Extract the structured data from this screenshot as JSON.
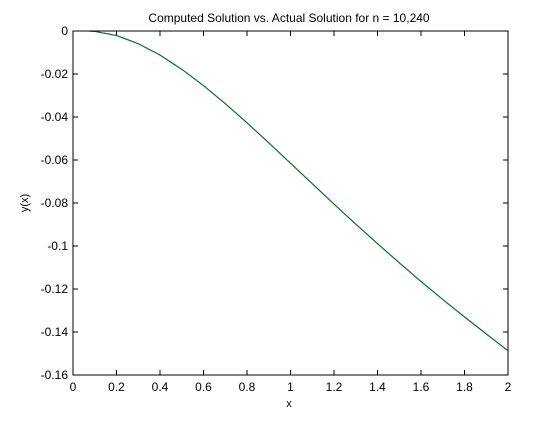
{
  "chart_data": {
    "type": "line",
    "title": "Computed Solution vs. Actual Solution for n = 10,240",
    "xlabel": "x",
    "ylabel": "y(x)",
    "xlim": [
      0,
      2
    ],
    "ylim": [
      -0.16,
      0
    ],
    "x_ticks": [
      0,
      0.2,
      0.4,
      0.6,
      0.8,
      1,
      1.2,
      1.4,
      1.6,
      1.8,
      2
    ],
    "x_tick_labels": [
      "0",
      "0.2",
      "0.4",
      "0.6",
      "0.8",
      "1",
      "1.2",
      "1.4",
      "1.6",
      "1.8",
      "2"
    ],
    "y_ticks": [
      0,
      -0.02,
      -0.04,
      -0.06,
      -0.08,
      -0.1,
      -0.12,
      -0.14,
      -0.16
    ],
    "y_tick_labels": [
      "0",
      "-0.02",
      "-0.04",
      "-0.06",
      "-0.08",
      "-0.1",
      "-0.12",
      "-0.14",
      "-0.16"
    ],
    "grid": false,
    "legend": "none",
    "series": [
      {
        "color": "#0000ff",
        "x": [
          0.07,
          0.1,
          0.2,
          0.3,
          0.4,
          0.5,
          0.6,
          0.7,
          0.8,
          0.9,
          1.0,
          1.1,
          1.2,
          1.3,
          1.4,
          1.5,
          1.6,
          1.7,
          1.8,
          1.9,
          2.0
        ],
        "y": [
          0,
          -0.0002,
          -0.0021,
          -0.0059,
          -0.0112,
          -0.0178,
          -0.0254,
          -0.0338,
          -0.0427,
          -0.052,
          -0.0615,
          -0.071,
          -0.0805,
          -0.0898,
          -0.0989,
          -0.1078,
          -0.1165,
          -0.1249,
          -0.133,
          -0.1409,
          -0.1487
        ]
      },
      {
        "color": "#008000",
        "x": [
          0.07,
          0.1,
          0.2,
          0.3,
          0.4,
          0.5,
          0.6,
          0.7,
          0.8,
          0.9,
          1.0,
          1.1,
          1.2,
          1.3,
          1.4,
          1.5,
          1.6,
          1.7,
          1.8,
          1.9,
          2.0
        ],
        "y": [
          0,
          -0.0002,
          -0.0021,
          -0.0059,
          -0.0112,
          -0.0178,
          -0.0254,
          -0.0338,
          -0.0427,
          -0.052,
          -0.0615,
          -0.071,
          -0.0805,
          -0.0898,
          -0.0989,
          -0.1078,
          -0.1165,
          -0.1249,
          -0.133,
          -0.1409,
          -0.1487
        ]
      }
    ]
  }
}
